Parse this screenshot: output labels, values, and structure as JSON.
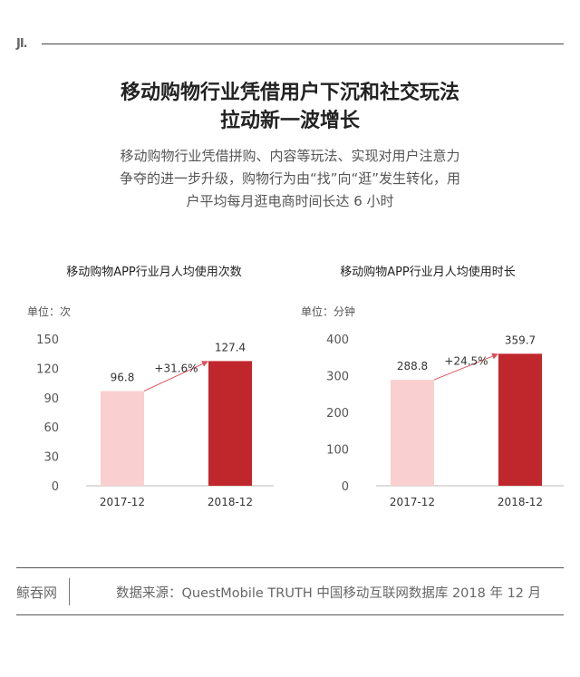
{
  "header": {
    "logo": "JI.",
    "title_line1": "移动购物行业凭借用户下沉和社交玩法",
    "title_line2": "拉动新一波增长",
    "subtitle_line1": "移动购物行业凭借拼购、内容等玩法、实现对用户注意力",
    "subtitle_line2": "争夺的进一步升级，购物行为由“找”向“逛”发生转化，用",
    "subtitle_line3": "户平均每月逛电商时间长达 6 小时"
  },
  "chart_data": [
    {
      "type": "bar",
      "title": "移动购物APP行业月人均使用次数",
      "unit_label": "单位：次",
      "categories": [
        "2017-12",
        "2018-12"
      ],
      "values": [
        96.8,
        127.4
      ],
      "value_labels": [
        "96.8",
        "127.4"
      ],
      "yticks": [
        "0",
        "30",
        "60",
        "90",
        "120",
        "150"
      ],
      "ylim": [
        0,
        150
      ],
      "growth_label": "+31.6%",
      "colors": [
        "#f9d0cf",
        "#c0272d"
      ],
      "arrow_color": "#d9515a",
      "grid": false
    },
    {
      "type": "bar",
      "title": "移动购物APP行业月人均使用时长",
      "unit_label": "单位：分钟",
      "categories": [
        "2017-12",
        "2018-12"
      ],
      "values": [
        288.8,
        359.7
      ],
      "value_labels": [
        "288.8",
        "359.7"
      ],
      "yticks": [
        "0",
        "100",
        "200",
        "300",
        "400"
      ],
      "ylim": [
        0,
        400
      ],
      "growth_label": "+24.5%",
      "colors": [
        "#f9d0cf",
        "#c0272d"
      ],
      "arrow_color": "#d9515a",
      "grid": false
    }
  ],
  "footer": {
    "brand": "鲸吞网",
    "source": "数据来源：QuestMobile TRUTH 中国移动互联网数据库 2018 年 12 月"
  }
}
